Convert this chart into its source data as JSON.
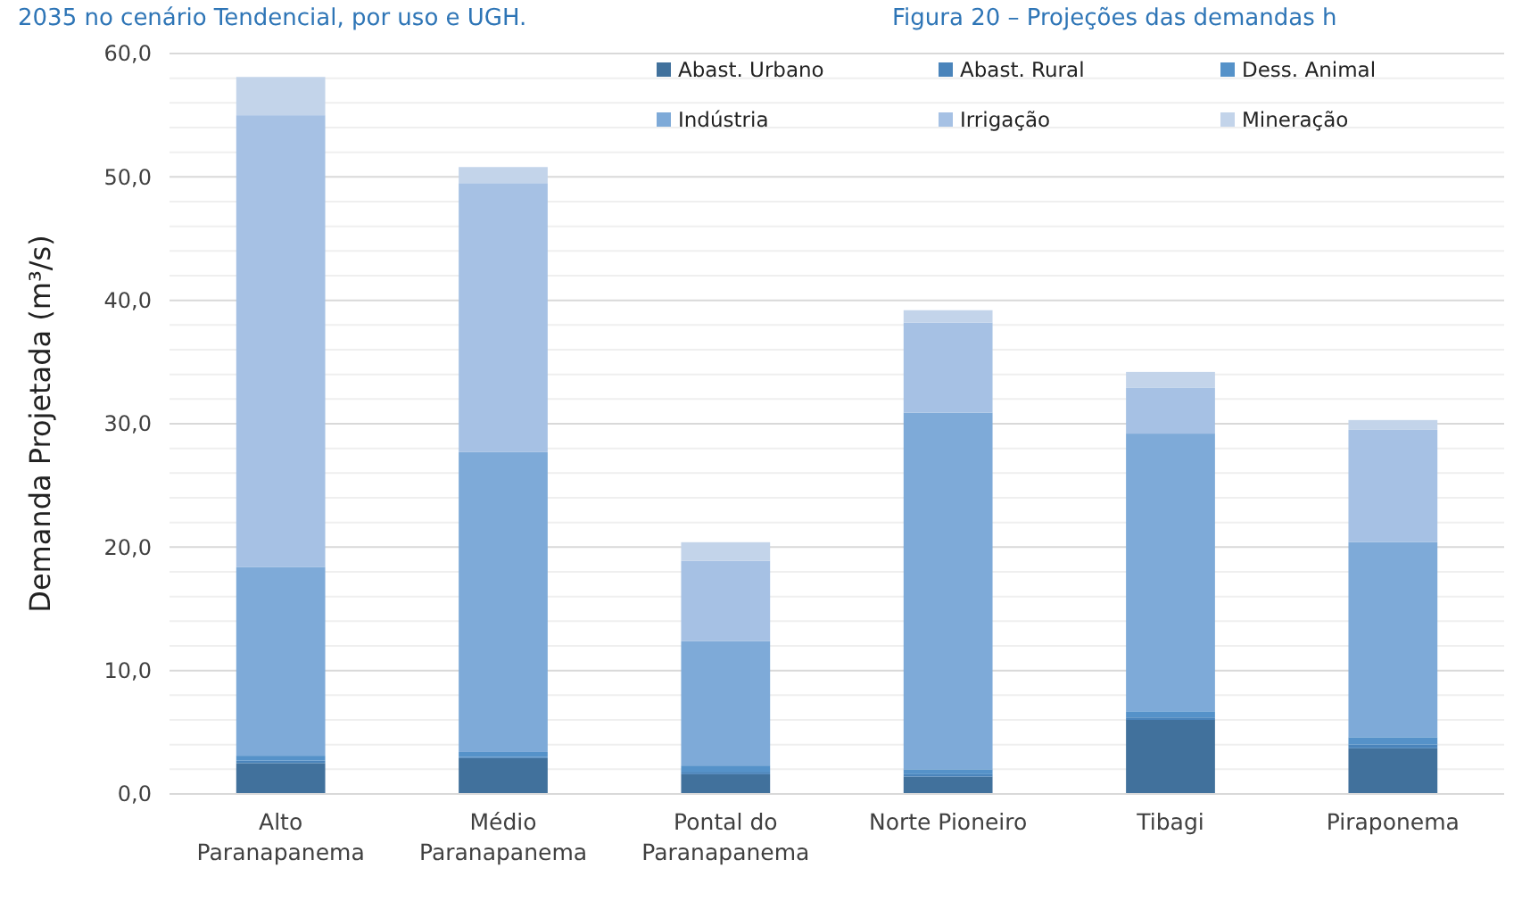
{
  "chart_data": {
    "type": "bar",
    "stacked": true,
    "ylabel": "Demanda Projetada (m³/s)",
    "annotations": [
      "2035 no cenário Tendencial, por uso e UGH.",
      "Figura 20 – Projeções das demandas h"
    ],
    "categories": [
      "Alto Paranapanema",
      "Médio Paranapanema",
      "Pontal do Paranapanema",
      "Norte Pioneiro",
      "Tibagi",
      "Piraponema"
    ],
    "series": [
      {
        "name": "Abast. Urbano",
        "color": "#41719c",
        "values": [
          2.5,
          2.9,
          1.6,
          1.4,
          6.0,
          3.7
        ]
      },
      {
        "name": "Abast. Rural",
        "color": "#4a84bb",
        "values": [
          0.2,
          0.1,
          0.2,
          0.2,
          0.2,
          0.3
        ]
      },
      {
        "name": "Dess. Animal",
        "color": "#5592c9",
        "values": [
          0.4,
          0.4,
          0.5,
          0.4,
          0.5,
          0.6
        ]
      },
      {
        "name": "Indústria",
        "color": "#7eaad8",
        "values": [
          15.3,
          24.3,
          10.1,
          28.9,
          22.5,
          15.8
        ]
      },
      {
        "name": "Irrigação",
        "color": "#a6c1e4",
        "values": [
          36.6,
          21.8,
          6.5,
          7.3,
          3.7,
          9.1
        ]
      },
      {
        "name": "Mineração",
        "color": "#c3d4ea",
        "values": [
          3.1,
          1.3,
          1.5,
          1.0,
          1.3,
          0.8
        ]
      }
    ],
    "ylim": [
      0,
      60
    ],
    "yticks": [
      {
        "value": 0,
        "label": "0,0"
      },
      {
        "value": 2,
        "label": null
      },
      {
        "value": 4,
        "label": null
      },
      {
        "value": 6,
        "label": null
      },
      {
        "value": 8,
        "label": null
      },
      {
        "value": 10,
        "label": "10,0"
      },
      {
        "value": 12,
        "label": null
      },
      {
        "value": 14,
        "label": null
      },
      {
        "value": 16,
        "label": null
      },
      {
        "value": 18,
        "label": null
      },
      {
        "value": 20,
        "label": "20,0"
      },
      {
        "value": 22,
        "label": null
      },
      {
        "value": 24,
        "label": null
      },
      {
        "value": 26,
        "label": null
      },
      {
        "value": 28,
        "label": null
      },
      {
        "value": 30,
        "label": "30,0"
      },
      {
        "value": 32,
        "label": null
      },
      {
        "value": 34,
        "label": null
      },
      {
        "value": 36,
        "label": null
      },
      {
        "value": 38,
        "label": null
      },
      {
        "value": 40,
        "label": "40,0"
      },
      {
        "value": 42,
        "label": null
      },
      {
        "value": 44,
        "label": null
      },
      {
        "value": 46,
        "label": null
      },
      {
        "value": 48,
        "label": null
      },
      {
        "value": 50,
        "label": "50,0"
      },
      {
        "value": 52,
        "label": null
      },
      {
        "value": 54,
        "label": null
      },
      {
        "value": 56,
        "label": null
      },
      {
        "value": 58,
        "label": null
      },
      {
        "value": 60,
        "label": "60,0"
      }
    ],
    "grid": "y",
    "legend": "top right"
  }
}
